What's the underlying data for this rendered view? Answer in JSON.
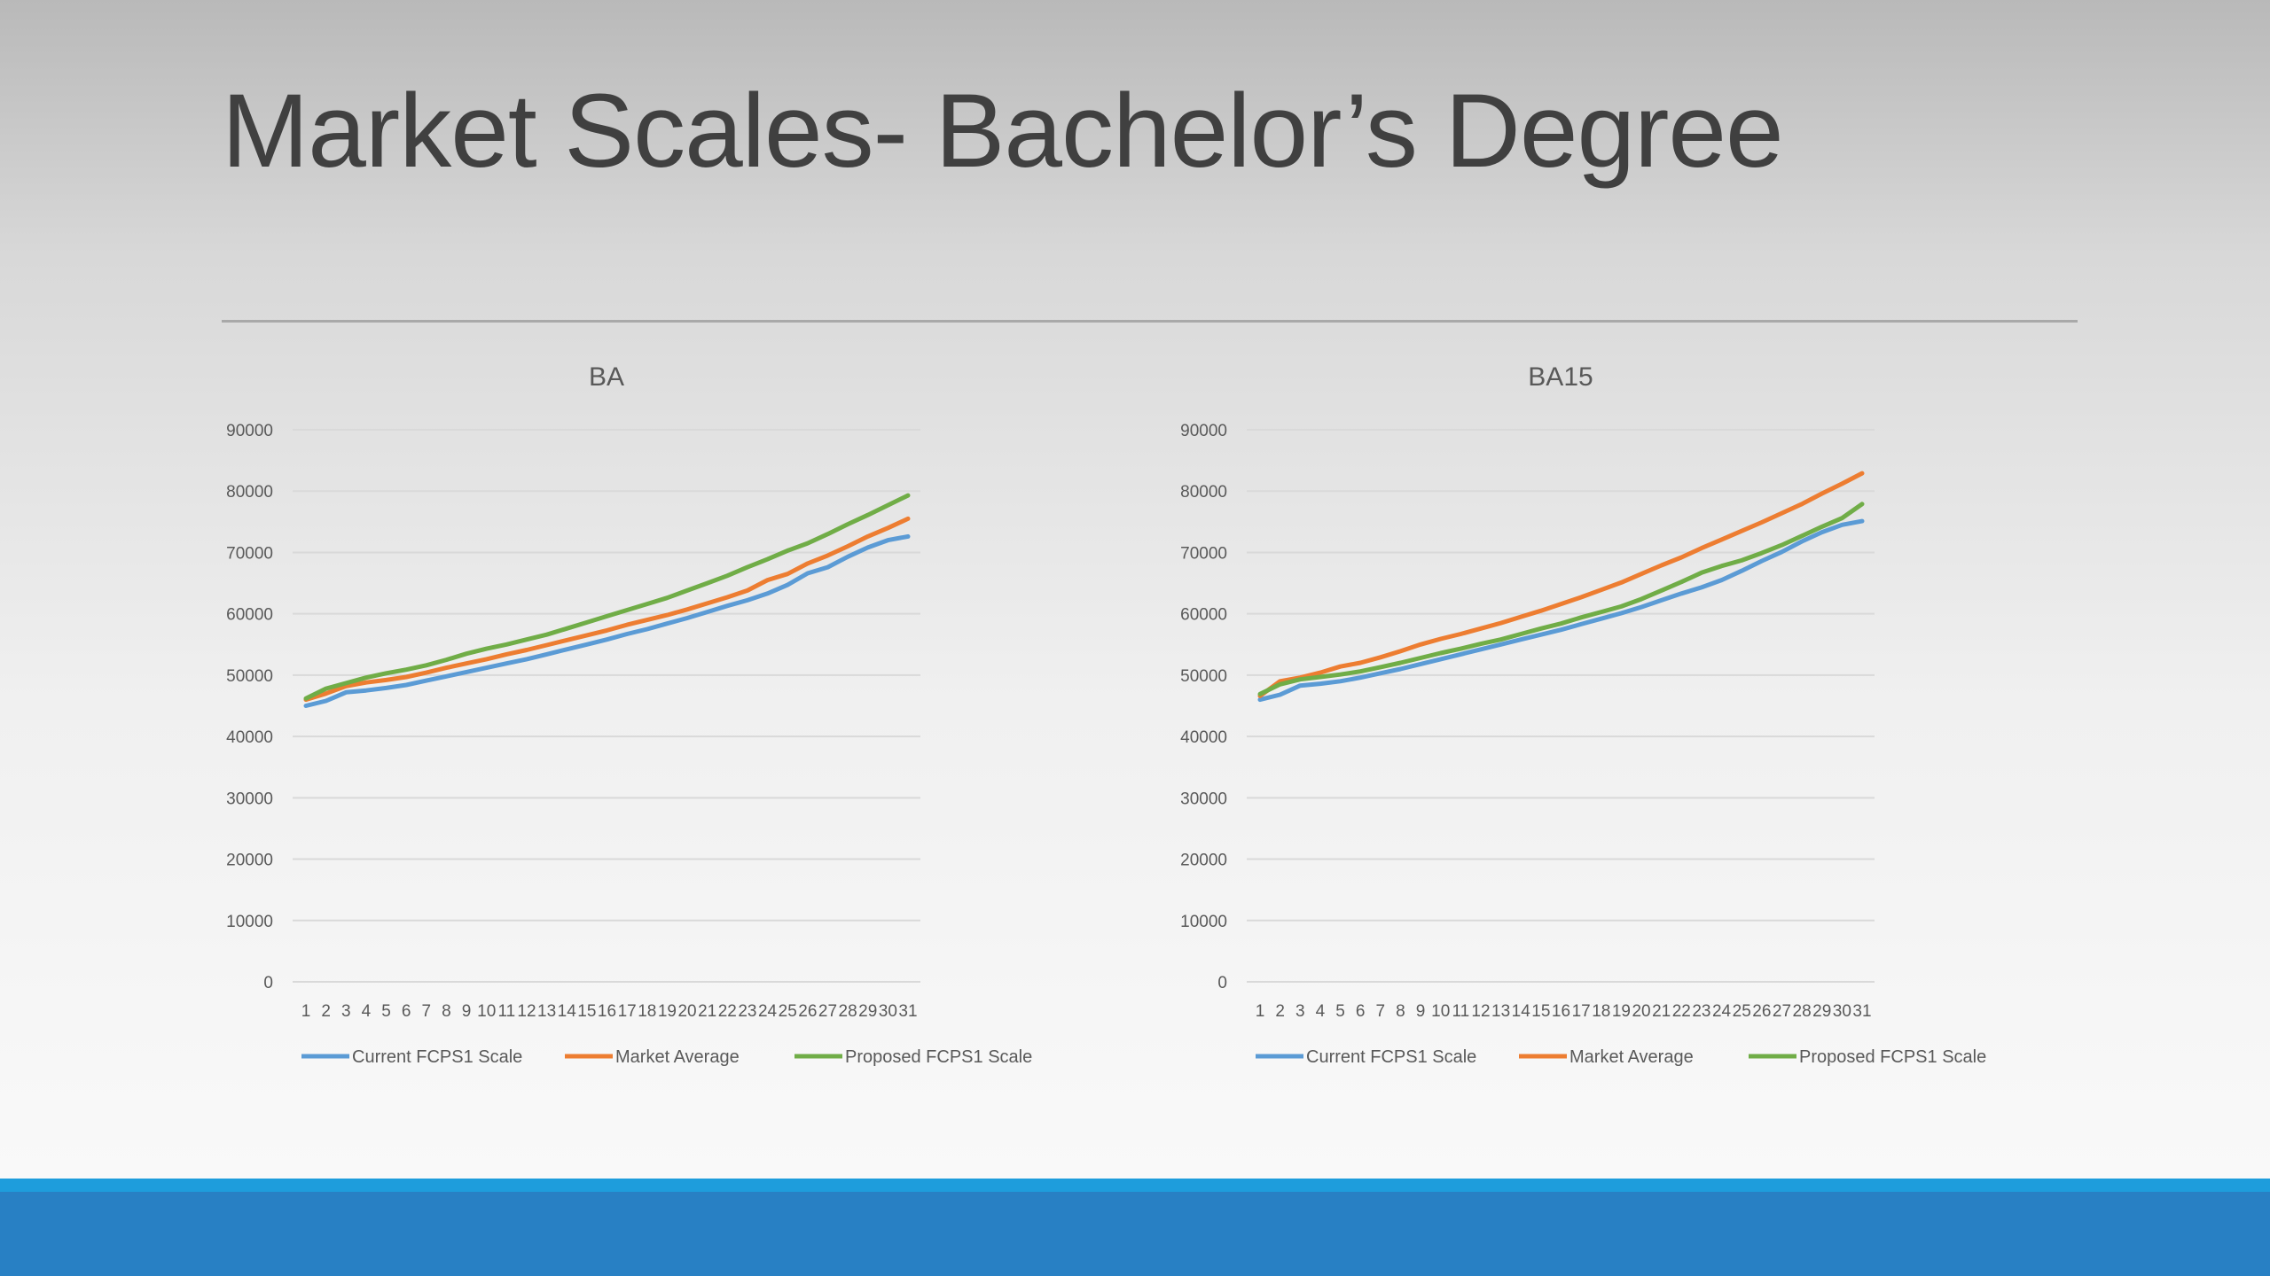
{
  "slide": {
    "title": "Market Scales- Bachelor’s Degree"
  },
  "colors": {
    "current": "#5b9bd5",
    "market": "#ed7d31",
    "proposed": "#70ad47",
    "footer_light": "#1e9ddc",
    "footer_dark": "#2880c4"
  },
  "chart_data": [
    {
      "type": "line",
      "title": "BA",
      "xlabel": "",
      "ylabel": "",
      "ylim": [
        0,
        90000
      ],
      "yticks": [
        0,
        10000,
        20000,
        30000,
        40000,
        50000,
        60000,
        70000,
        80000,
        90000
      ],
      "grid": true,
      "legend": "bottom",
      "categories": [
        1,
        2,
        3,
        4,
        5,
        6,
        7,
        8,
        9,
        10,
        11,
        12,
        13,
        14,
        15,
        16,
        17,
        18,
        19,
        20,
        21,
        22,
        23,
        24,
        25,
        26,
        27,
        28,
        29,
        30,
        31
      ],
      "series": [
        {
          "name": "Current FCPS1 Scale",
          "color": "#5b9bd5",
          "values": [
            45000,
            45800,
            47200,
            47500,
            47900,
            48400,
            49100,
            49800,
            50500,
            51200,
            51900,
            52600,
            53400,
            54200,
            55000,
            55800,
            56700,
            57500,
            58400,
            59300,
            60300,
            61300,
            62200,
            63300,
            64700,
            66600,
            67600,
            69300,
            70800,
            72000,
            72600
          ]
        },
        {
          "name": "Market Average",
          "color": "#ed7d31",
          "values": [
            46000,
            47000,
            48200,
            48800,
            49200,
            49700,
            50400,
            51200,
            51900,
            52600,
            53400,
            54100,
            54900,
            55700,
            56500,
            57300,
            58200,
            59000,
            59800,
            60700,
            61700,
            62700,
            63800,
            65500,
            66500,
            68200,
            69500,
            71000,
            72600,
            74000,
            75500
          ]
        },
        {
          "name": "Proposed FCPS1 Scale",
          "color": "#70ad47",
          "values": [
            46200,
            47800,
            48700,
            49600,
            50300,
            50900,
            51600,
            52500,
            53500,
            54300,
            55000,
            55800,
            56600,
            57600,
            58600,
            59600,
            60600,
            61600,
            62600,
            63800,
            65000,
            66200,
            67600,
            68900,
            70300,
            71500,
            73000,
            74600,
            76100,
            77700,
            79300
          ]
        }
      ]
    },
    {
      "type": "line",
      "title": "BA15",
      "xlabel": "",
      "ylabel": "",
      "ylim": [
        0,
        90000
      ],
      "yticks": [
        0,
        10000,
        20000,
        30000,
        40000,
        50000,
        60000,
        70000,
        80000,
        90000
      ],
      "grid": true,
      "legend": "bottom",
      "categories": [
        1,
        2,
        3,
        4,
        5,
        6,
        7,
        8,
        9,
        10,
        11,
        12,
        13,
        14,
        15,
        16,
        17,
        18,
        19,
        20,
        21,
        22,
        23,
        24,
        25,
        26,
        27,
        28,
        29,
        30,
        31
      ],
      "series": [
        {
          "name": "Current FCPS1 Scale",
          "color": "#5b9bd5",
          "values": [
            46000,
            46800,
            48300,
            48600,
            49000,
            49600,
            50300,
            51000,
            51800,
            52600,
            53400,
            54200,
            55000,
            55800,
            56600,
            57400,
            58300,
            59200,
            60100,
            61100,
            62200,
            63300,
            64300,
            65500,
            67000,
            68600,
            70100,
            71800,
            73300,
            74500,
            75100
          ]
        },
        {
          "name": "Market Average",
          "color": "#ed7d31",
          "values": [
            46600,
            49000,
            49600,
            50400,
            51400,
            52000,
            52900,
            53900,
            55000,
            55900,
            56700,
            57600,
            58500,
            59500,
            60500,
            61600,
            62700,
            63900,
            65100,
            66500,
            67900,
            69200,
            70700,
            72100,
            73500,
            74900,
            76400,
            77900,
            79600,
            81200,
            82900
          ]
        },
        {
          "name": "Proposed FCPS1 Scale",
          "color": "#70ad47",
          "values": [
            46900,
            48500,
            49300,
            49700,
            50100,
            50600,
            51300,
            52000,
            52800,
            53600,
            54300,
            55100,
            55800,
            56700,
            57600,
            58400,
            59400,
            60300,
            61200,
            62400,
            63800,
            65200,
            66700,
            67800,
            68700,
            69900,
            71200,
            72700,
            74200,
            75600,
            77900
          ]
        }
      ]
    }
  ]
}
